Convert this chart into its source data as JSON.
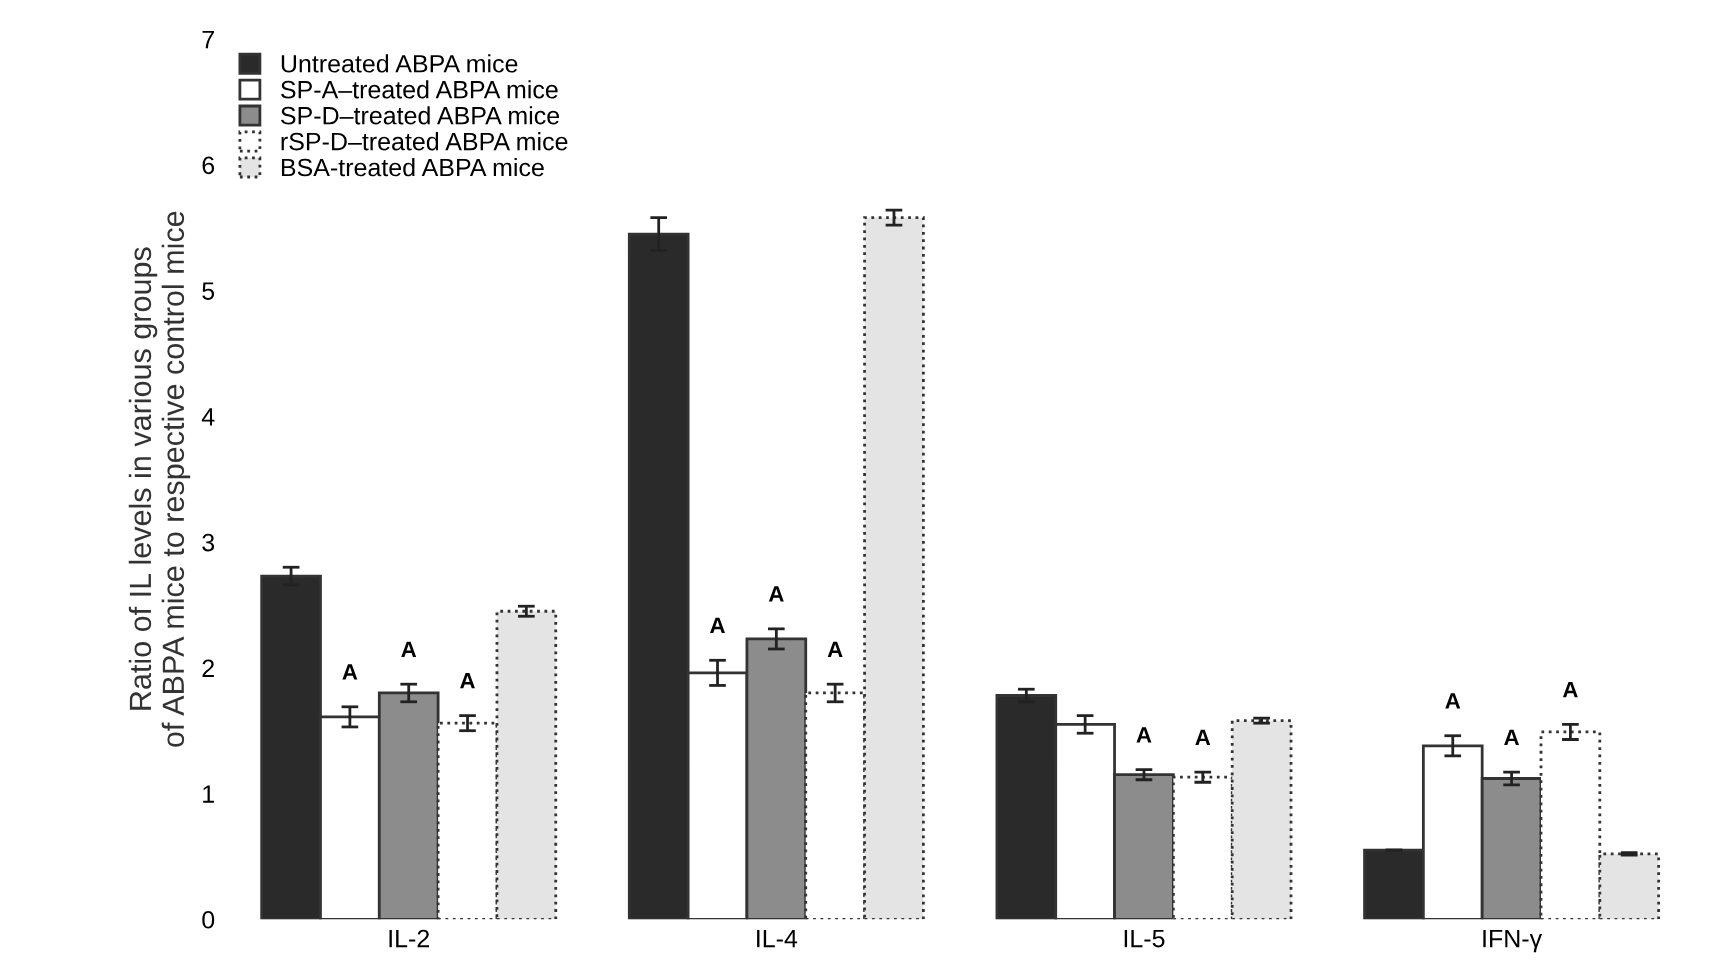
{
  "chart_data": {
    "type": "bar",
    "ylabel": "Ratio of IL levels in various groups\nof ABPA mice to respective control mice",
    "categories": [
      "IL-2",
      "IL-4",
      "IL-5",
      "IFN-γ"
    ],
    "series": [
      {
        "name": "Untreated ABPA mice",
        "color": "#2a2a2a",
        "values": [
          2.73,
          5.45,
          1.78,
          0.55
        ],
        "errors": [
          0.07,
          0.13,
          0.05,
          null
        ]
      },
      {
        "name": "SP-A–treated ABPA mice",
        "color": "#ffffff",
        "values": [
          1.61,
          1.96,
          1.55,
          1.38
        ],
        "errors": [
          0.08,
          0.1,
          0.07,
          0.08
        ],
        "value_labels": [
          "A",
          "A",
          null,
          "A"
        ]
      },
      {
        "name": "SP-D–treated ABPA mice",
        "color": "#8c8c8c",
        "values": [
          1.8,
          2.23,
          1.15,
          1.12
        ],
        "errors": [
          0.07,
          0.08,
          0.04,
          0.05
        ],
        "value_labels": [
          "A",
          "A",
          "A",
          "A"
        ]
      },
      {
        "name": "rSP-D–treated ABPA mice",
        "color": "#ffffff",
        "line_style": "dotted",
        "values": [
          1.56,
          1.8,
          1.13,
          1.49
        ],
        "errors": [
          0.06,
          0.07,
          0.04,
          0.06
        ],
        "value_labels": [
          "A",
          "A",
          "A",
          "A"
        ]
      },
      {
        "name": "BSA-treated ABPA mice",
        "color": "#e4e4e4",
        "line_style": "dotted",
        "values": [
          2.45,
          5.58,
          1.58,
          0.52
        ],
        "errors": [
          0.04,
          0.06,
          0.02,
          0.01
        ]
      }
    ],
    "ylim": [
      0,
      7
    ],
    "yticks": [
      0,
      1,
      2,
      3,
      4,
      5,
      6,
      7
    ],
    "legend": "top left",
    "grid": false
  }
}
